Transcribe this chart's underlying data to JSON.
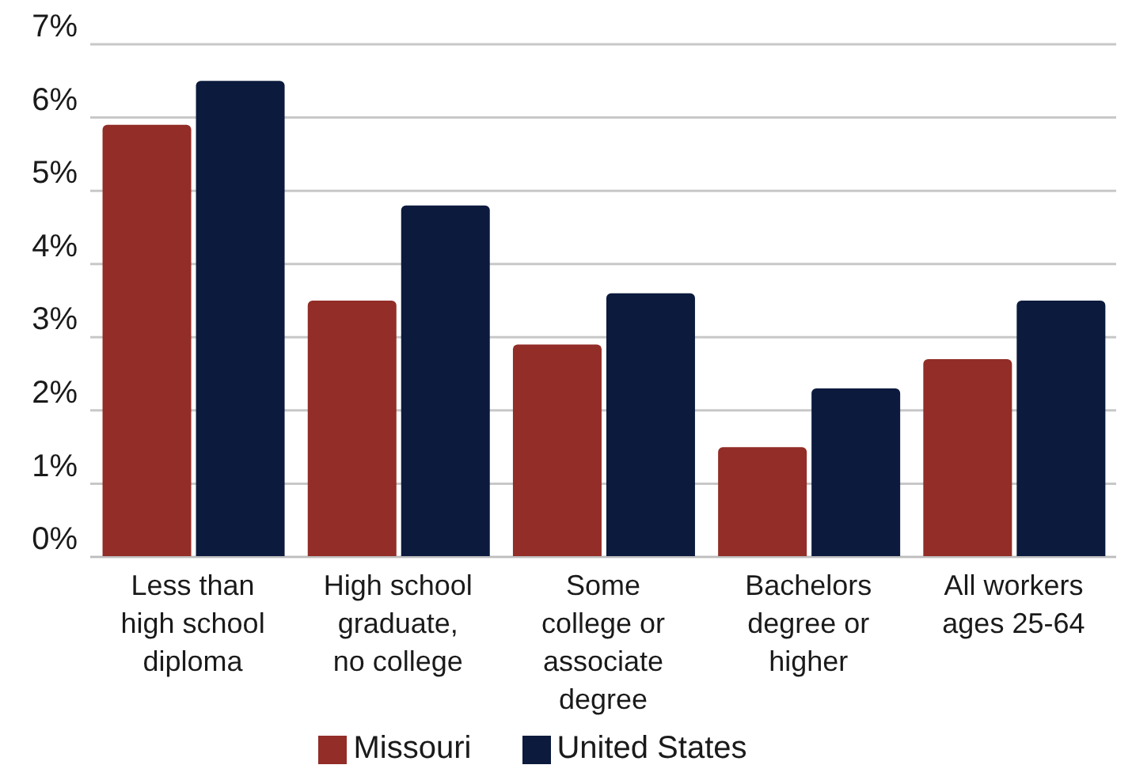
{
  "chart_data": {
    "type": "bar",
    "categories": [
      "Less than high school diploma",
      "High school graduate, no college",
      "Some college or associate degree",
      "Bachelors degree or higher",
      "All workers ages 25-64"
    ],
    "series": [
      {
        "name": "Missouri",
        "color": "#922d27",
        "values": [
          5.9,
          3.5,
          2.9,
          1.5,
          2.7
        ]
      },
      {
        "name": "United States",
        "color": "#0b1a3d",
        "values": [
          6.5,
          4.8,
          3.6,
          2.3,
          3.5
        ]
      }
    ],
    "ylim": [
      0,
      7
    ],
    "yticks": [
      {
        "value": 0,
        "label": "0%"
      },
      {
        "value": 1,
        "label": "1%"
      },
      {
        "value": 2,
        "label": "2%"
      },
      {
        "value": 3,
        "label": "3%"
      },
      {
        "value": 4,
        "label": "4%"
      },
      {
        "value": 5,
        "label": "5%"
      },
      {
        "value": 6,
        "label": "6%"
      },
      {
        "value": 7,
        "label": "7%"
      }
    ],
    "grid": "y",
    "legend": "bottom"
  }
}
